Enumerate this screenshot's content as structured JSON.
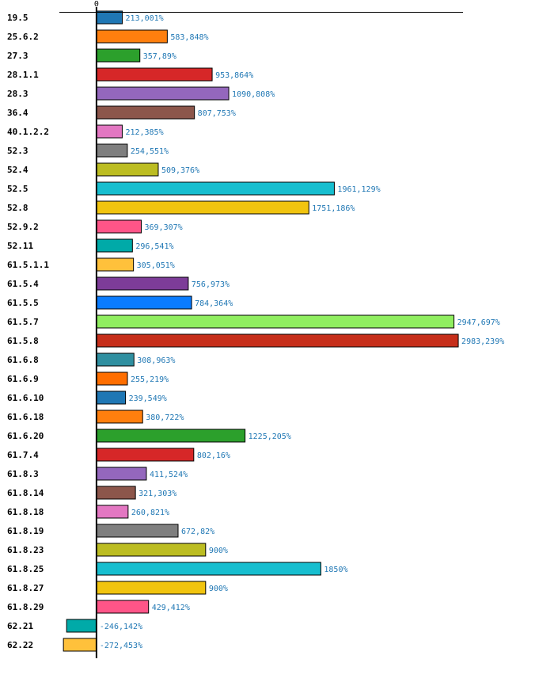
{
  "chart_data": {
    "type": "bar",
    "orientation": "horizontal",
    "title": "",
    "xlabel": "",
    "ylabel": "",
    "xlim": [
      -306,
      3022
    ],
    "zero_tick_label": "0",
    "value_suffix": "%",
    "decimal_separator": ",",
    "grid": false,
    "legend": "none",
    "categories": [
      "19.5",
      "25.6.2",
      "27.3",
      "28.1.1",
      "28.3",
      "36.4",
      "40.1.2.2",
      "52.3",
      "52.4",
      "52.5",
      "52.8",
      "52.9.2",
      "52.11",
      "61.5.1.1",
      "61.5.4",
      "61.5.5",
      "61.5.7",
      "61.5.8",
      "61.6.8",
      "61.6.9",
      "61.6.10",
      "61.6.18",
      "61.6.20",
      "61.7.4",
      "61.8.3",
      "61.8.14",
      "61.8.18",
      "61.8.19",
      "61.8.23",
      "61.8.25",
      "61.8.27",
      "61.8.29",
      "62.21",
      "62.22"
    ],
    "values": [
      213.001,
      583.848,
      357.89,
      953.864,
      1090.808,
      807.753,
      212.385,
      254.551,
      509.376,
      1961.129,
      1751.186,
      369.307,
      296.541,
      305.051,
      756.973,
      784.364,
      2947.697,
      2983.239,
      308.963,
      255.219,
      239.549,
      380.722,
      1225.205,
      802.16,
      411.524,
      321.303,
      260.821,
      672.82,
      900,
      1850,
      900,
      429.412,
      -246.142,
      -272.453
    ],
    "value_labels": [
      "213,001%",
      "583,848%",
      "357,89%",
      "953,864%",
      "1090,808%",
      "807,753%",
      "212,385%",
      "254,551%",
      "509,376%",
      "1961,129%",
      "1751,186%",
      "369,307%",
      "296,541%",
      "305,051%",
      "756,973%",
      "784,364%",
      "2947,697%",
      "2983,239%",
      "308,963%",
      "255,219%",
      "239,549%",
      "380,722%",
      "1225,205%",
      "802,16%",
      "411,524%",
      "321,303%",
      "260,821%",
      "672,82%",
      "900%",
      "1850%",
      "900%",
      "429,412%",
      "-246,142%",
      "-272,453%"
    ],
    "colors": [
      "#1f77b4",
      "#ff7f0e",
      "#2ca02c",
      "#d62728",
      "#9467bd",
      "#8c564b",
      "#e377c2",
      "#7f7f7f",
      "#bcbd22",
      "#17becf",
      "#f1c40f",
      "#ff5588",
      "#00aaa8",
      "#ffc13b",
      "#7d3c98",
      "#0a7cff",
      "#90ee60",
      "#c62e1a",
      "#2f8fa0",
      "#ff6e00",
      "#1f77b4",
      "#ff7f0e",
      "#2ca02c",
      "#d62728",
      "#9467bd",
      "#8c564b",
      "#e377c2",
      "#7f7f7f",
      "#bcbd22",
      "#17becf",
      "#f1c40f",
      "#ff5588",
      "#00aaa8",
      "#ffc13b"
    ],
    "value_label_color": "#1f77b4"
  }
}
